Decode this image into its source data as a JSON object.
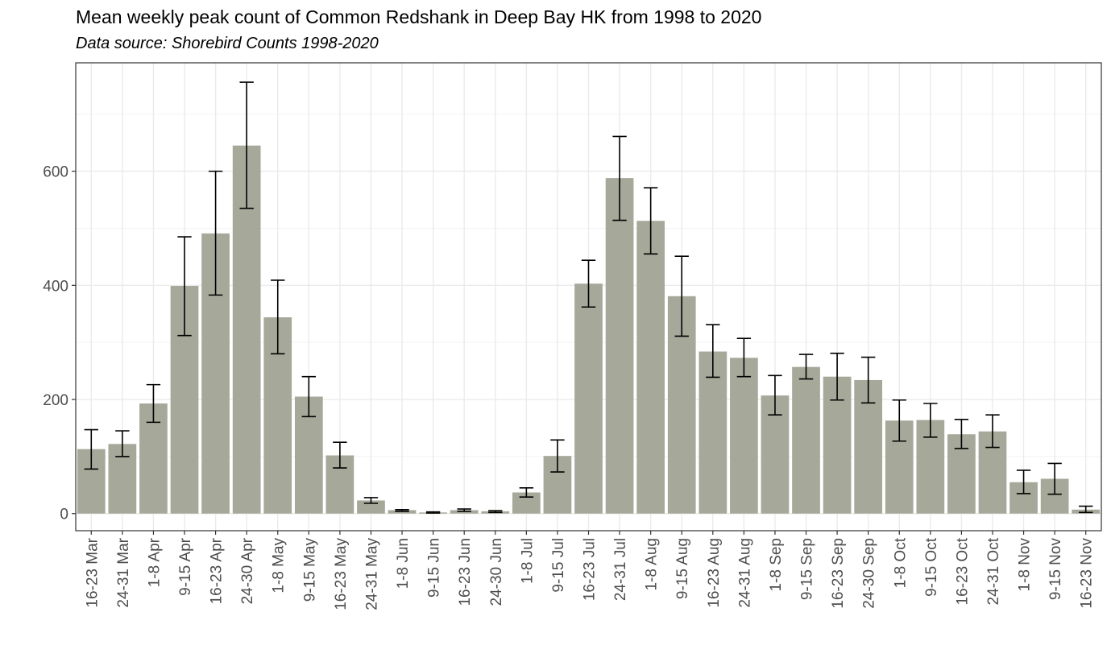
{
  "chart_data": {
    "type": "bar",
    "title": "Mean weekly peak count of Common Redshank in Deep Bay HK from 1998 to 2020",
    "subtitle": "Data source: Shorebird Counts 1998-2020",
    "xlabel": "",
    "ylabel": "",
    "ylim": [
      -30,
      790
    ],
    "yticks": [
      0,
      200,
      400,
      600
    ],
    "grid": true,
    "bar_color": "#a6a899",
    "categories": [
      "16-23 Mar",
      "24-31 Mar",
      "1-8 Apr",
      "9-15 Apr",
      "16-23 Apr",
      "24-30 Apr",
      "1-8 May",
      "9-15 May",
      "16-23 May",
      "24-31 May",
      "1-8 Jun",
      "9-15 Jun",
      "16-23 Jun",
      "24-30 Jun",
      "1-8 Jul",
      "9-15 Jul",
      "16-23 Jul",
      "24-31 Jul",
      "1-8 Aug",
      "9-15 Aug",
      "16-23 Aug",
      "24-31 Aug",
      "1-8 Sep",
      "9-15 Sep",
      "16-23 Sep",
      "24-30 Sep",
      "1-8 Oct",
      "9-15 Oct",
      "16-23 Oct",
      "24-31 Oct",
      "1-8 Nov",
      "9-15 Nov",
      "16-23 Nov"
    ],
    "values": [
      113,
      122,
      193,
      399,
      491,
      645,
      344,
      205,
      102,
      23,
      6,
      2,
      6,
      4,
      37,
      101,
      403,
      588,
      513,
      381,
      284,
      273,
      207,
      257,
      240,
      234,
      163,
      164,
      139,
      144,
      55,
      61,
      7
    ],
    "error_low": [
      78,
      100,
      160,
      312,
      383,
      535,
      280,
      170,
      80,
      18,
      4,
      1,
      4,
      2,
      29,
      73,
      362,
      514,
      455,
      311,
      239,
      240,
      173,
      236,
      199,
      194,
      127,
      134,
      114,
      116,
      35,
      34,
      2
    ],
    "error_high": [
      147,
      145,
      226,
      485,
      600,
      756,
      409,
      240,
      125,
      28,
      7,
      3,
      8,
      5,
      45,
      129,
      444,
      661,
      571,
      451,
      331,
      307,
      242,
      279,
      281,
      274,
      199,
      193,
      165,
      173,
      76,
      88,
      13
    ]
  }
}
